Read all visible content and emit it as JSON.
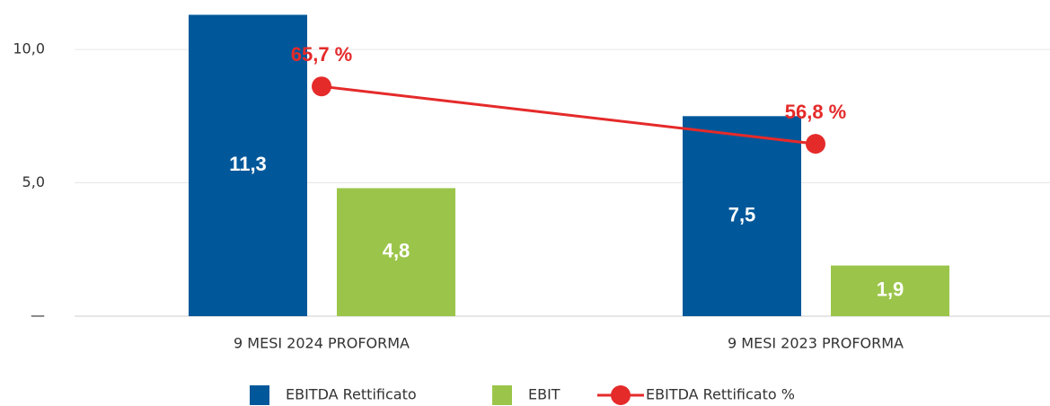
{
  "chart_data": {
    "type": "bar_line",
    "categories": [
      "9 MESI 2024 PROFORMA",
      "9 MESI 2023 PROFORMA"
    ],
    "series": [
      {
        "name": "EBITDA Rettificato",
        "type": "bar",
        "color": "#00589a",
        "values": [
          11.3,
          7.5
        ],
        "value_labels": [
          "11,3",
          "7,5"
        ]
      },
      {
        "name": "EBIT",
        "type": "bar",
        "color": "#9bc54a",
        "values": [
          4.8,
          1.9
        ],
        "value_labels": [
          "4,8",
          "1,9"
        ]
      },
      {
        "name": "EBITDA Rettificato %",
        "type": "line",
        "axis": "y2",
        "color": "#e52a2a",
        "values": [
          65.7,
          56.8
        ],
        "value_labels": [
          "65,7 %",
          "56,8 %"
        ]
      }
    ],
    "ylim": [
      0,
      11.35
    ],
    "yticks": [
      {
        "value": 0,
        "label": "—"
      },
      {
        "value": 5,
        "label": "5,0"
      },
      {
        "value": 10,
        "label": "10,0"
      }
    ],
    "y2lim": [
      30.1,
      77
    ],
    "grid": true,
    "legend": "bottom"
  }
}
